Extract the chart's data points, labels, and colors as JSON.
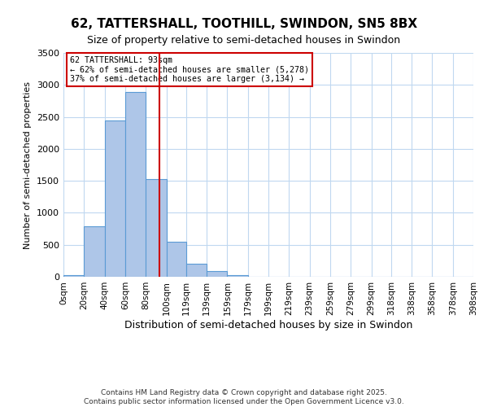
{
  "title": "62, TATTERSHALL, TOOTHILL, SWINDON, SN5 8BX",
  "subtitle": "Size of property relative to semi-detached houses in Swindon",
  "xlabel": "Distribution of semi-detached houses by size in Swindon",
  "ylabel": "Number of semi-detached properties",
  "footer_line1": "Contains HM Land Registry data © Crown copyright and database right 2025.",
  "footer_line2": "Contains public sector information licensed under the Open Government Licence v3.0.",
  "bar_labels": [
    "0sqm",
    "20sqm",
    "40sqm",
    "60sqm",
    "80sqm",
    "100sqm",
    "119sqm",
    "139sqm",
    "159sqm",
    "179sqm",
    "199sqm",
    "219sqm",
    "239sqm",
    "259sqm",
    "279sqm",
    "299sqm",
    "318sqm",
    "338sqm",
    "358sqm",
    "378sqm",
    "398sqm"
  ],
  "bar_values": [
    30,
    790,
    2440,
    2890,
    1530,
    550,
    200,
    90,
    30,
    0,
    0,
    0,
    0,
    0,
    0,
    0,
    0,
    0,
    0,
    0
  ],
  "bar_color": "#aec6e8",
  "bar_edge_color": "#5b9bd5",
  "property_line_x": 93,
  "property_line_color": "#cc0000",
  "annotation_title": "62 TATTERSHALL: 93sqm",
  "annotation_line1": "← 62% of semi-detached houses are smaller (5,278)",
  "annotation_line2": "37% of semi-detached houses are larger (3,134) →",
  "annotation_box_color": "#ffffff",
  "annotation_box_edge": "#cc0000",
  "ylim": [
    0,
    3500
  ],
  "yticks": [
    0,
    500,
    1000,
    1500,
    2000,
    2500,
    3000,
    3500
  ],
  "background_color": "#ffffff",
  "grid_color": "#c0d8f0",
  "bin_edges": [
    0,
    20,
    40,
    60,
    80,
    100,
    119,
    139,
    159,
    179,
    199,
    219,
    239,
    259,
    279,
    299,
    318,
    338,
    358,
    378,
    398
  ]
}
